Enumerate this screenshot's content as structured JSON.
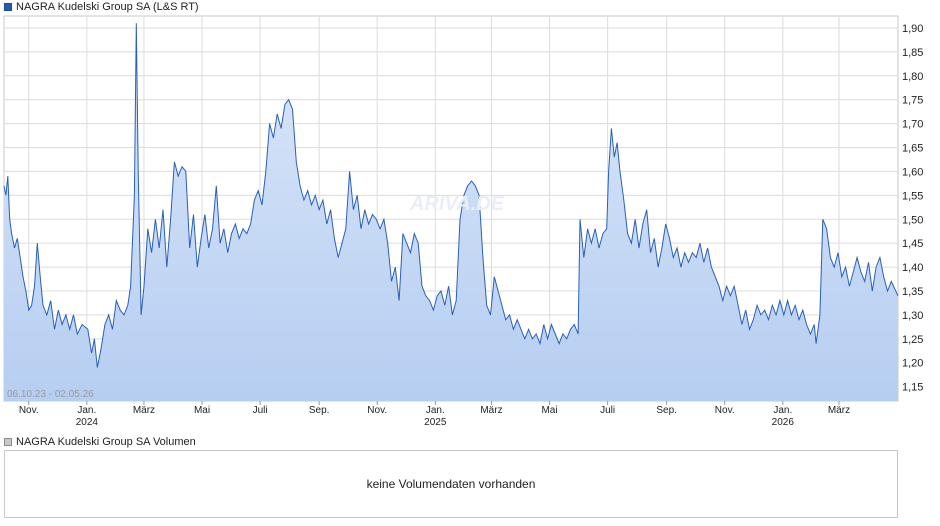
{
  "legend": {
    "price_label": "NAGRA Kudelski Group SA (L&S RT)",
    "volume_label": "NAGRA Kudelski Group SA Volumen"
  },
  "volume": {
    "message": "keine Volumendaten vorhanden"
  },
  "colors": {
    "line": "#2a5fb8",
    "fill_top": "#dbe7f8",
    "fill_bottom": "#b6cef2",
    "grid": "#dcdcdc"
  },
  "chart_data": {
    "type": "area",
    "date_range_label": "06.10.23 - 02.05.26",
    "y_ticks": [
      1.15,
      1.2,
      1.25,
      1.3,
      1.35,
      1.4,
      1.45,
      1.5,
      1.55,
      1.6,
      1.65,
      1.7,
      1.75,
      1.8,
      1.85,
      1.9
    ],
    "y_tick_labels": [
      "1,15",
      "1,20",
      "1,25",
      "1,30",
      "1,35",
      "1,40",
      "1,45",
      "1,50",
      "1,55",
      "1,60",
      "1,65",
      "1,70",
      "1,75",
      "1,80",
      "1,85",
      "1,90"
    ],
    "ylim": [
      1.12,
      1.925
    ],
    "xlim": [
      "2023-10-06",
      "2026-05-02"
    ],
    "x_ticks": [
      {
        "date": "2023-11-01",
        "label": "Nov."
      },
      {
        "date": "2024-01-01",
        "label": "Jan.",
        "year": "2024"
      },
      {
        "date": "2024-03-01",
        "label": "März"
      },
      {
        "date": "2024-05-01",
        "label": "Mai"
      },
      {
        "date": "2024-07-01",
        "label": "Juli"
      },
      {
        "date": "2024-09-01",
        "label": "Sep."
      },
      {
        "date": "2024-11-01",
        "label": "Nov."
      },
      {
        "date": "2025-01-01",
        "label": "Jan.",
        "year": "2025"
      },
      {
        "date": "2025-03-01",
        "label": "März"
      },
      {
        "date": "2025-05-01",
        "label": "Mai"
      },
      {
        "date": "2025-07-01",
        "label": "Juli"
      },
      {
        "date": "2025-09-01",
        "label": "Sep."
      },
      {
        "date": "2025-11-01",
        "label": "Nov."
      },
      {
        "date": "2026-01-01",
        "label": "Jan.",
        "year": "2026"
      },
      {
        "date": "2026-03-01",
        "label": "März"
      }
    ],
    "series": [
      {
        "points": [
          [
            "2023-10-06",
            1.57
          ],
          [
            "2023-10-08",
            1.55
          ],
          [
            "2023-10-10",
            1.59
          ],
          [
            "2023-10-12",
            1.5
          ],
          [
            "2023-10-14",
            1.47
          ],
          [
            "2023-10-17",
            1.44
          ],
          [
            "2023-10-20",
            1.46
          ],
          [
            "2023-10-23",
            1.42
          ],
          [
            "2023-10-26",
            1.38
          ],
          [
            "2023-10-29",
            1.35
          ],
          [
            "2023-11-01",
            1.31
          ],
          [
            "2023-11-04",
            1.32
          ],
          [
            "2023-11-07",
            1.36
          ],
          [
            "2023-11-10",
            1.45
          ],
          [
            "2023-11-13",
            1.38
          ],
          [
            "2023-11-16",
            1.32
          ],
          [
            "2023-11-20",
            1.3
          ],
          [
            "2023-11-24",
            1.33
          ],
          [
            "2023-11-28",
            1.27
          ],
          [
            "2023-12-02",
            1.31
          ],
          [
            "2023-12-06",
            1.28
          ],
          [
            "2023-12-10",
            1.3
          ],
          [
            "2023-12-14",
            1.27
          ],
          [
            "2023-12-18",
            1.3
          ],
          [
            "2023-12-22",
            1.26
          ],
          [
            "2023-12-27",
            1.28
          ],
          [
            "2024-01-02",
            1.27
          ],
          [
            "2024-01-06",
            1.22
          ],
          [
            "2024-01-09",
            1.25
          ],
          [
            "2024-01-12",
            1.19
          ],
          [
            "2024-01-16",
            1.23
          ],
          [
            "2024-01-20",
            1.28
          ],
          [
            "2024-01-24",
            1.3
          ],
          [
            "2024-01-28",
            1.27
          ],
          [
            "2024-02-01",
            1.33
          ],
          [
            "2024-02-05",
            1.31
          ],
          [
            "2024-02-09",
            1.3
          ],
          [
            "2024-02-13",
            1.32
          ],
          [
            "2024-02-16",
            1.36
          ],
          [
            "2024-02-20",
            1.55
          ],
          [
            "2024-02-22",
            1.91
          ],
          [
            "2024-02-24",
            1.6
          ],
          [
            "2024-02-27",
            1.3
          ],
          [
            "2024-03-01",
            1.36
          ],
          [
            "2024-03-05",
            1.48
          ],
          [
            "2024-03-09",
            1.43
          ],
          [
            "2024-03-13",
            1.5
          ],
          [
            "2024-03-17",
            1.44
          ],
          [
            "2024-03-21",
            1.52
          ],
          [
            "2024-03-25",
            1.4
          ],
          [
            "2024-03-29",
            1.5
          ],
          [
            "2024-04-02",
            1.62
          ],
          [
            "2024-04-06",
            1.59
          ],
          [
            "2024-04-10",
            1.61
          ],
          [
            "2024-04-14",
            1.6
          ],
          [
            "2024-04-18",
            1.44
          ],
          [
            "2024-04-22",
            1.51
          ],
          [
            "2024-04-26",
            1.4
          ],
          [
            "2024-04-30",
            1.46
          ],
          [
            "2024-05-04",
            1.51
          ],
          [
            "2024-05-08",
            1.44
          ],
          [
            "2024-05-12",
            1.48
          ],
          [
            "2024-05-16",
            1.57
          ],
          [
            "2024-05-20",
            1.45
          ],
          [
            "2024-05-24",
            1.48
          ],
          [
            "2024-05-28",
            1.43
          ],
          [
            "2024-06-01",
            1.47
          ],
          [
            "2024-06-05",
            1.49
          ],
          [
            "2024-06-09",
            1.46
          ],
          [
            "2024-06-13",
            1.48
          ],
          [
            "2024-06-17",
            1.47
          ],
          [
            "2024-06-21",
            1.49
          ],
          [
            "2024-06-25",
            1.54
          ],
          [
            "2024-06-29",
            1.56
          ],
          [
            "2024-07-03",
            1.53
          ],
          [
            "2024-07-07",
            1.6
          ],
          [
            "2024-07-11",
            1.7
          ],
          [
            "2024-07-15",
            1.67
          ],
          [
            "2024-07-19",
            1.72
          ],
          [
            "2024-07-23",
            1.69
          ],
          [
            "2024-07-27",
            1.74
          ],
          [
            "2024-07-31",
            1.75
          ],
          [
            "2024-08-04",
            1.73
          ],
          [
            "2024-08-08",
            1.62
          ],
          [
            "2024-08-12",
            1.57
          ],
          [
            "2024-08-16",
            1.54
          ],
          [
            "2024-08-20",
            1.56
          ],
          [
            "2024-08-24",
            1.53
          ],
          [
            "2024-08-28",
            1.55
          ],
          [
            "2024-09-01",
            1.52
          ],
          [
            "2024-09-05",
            1.54
          ],
          [
            "2024-09-09",
            1.49
          ],
          [
            "2024-09-13",
            1.52
          ],
          [
            "2024-09-17",
            1.46
          ],
          [
            "2024-09-21",
            1.42
          ],
          [
            "2024-09-25",
            1.45
          ],
          [
            "2024-09-29",
            1.48
          ],
          [
            "2024-10-03",
            1.6
          ],
          [
            "2024-10-07",
            1.52
          ],
          [
            "2024-10-11",
            1.55
          ],
          [
            "2024-10-15",
            1.48
          ],
          [
            "2024-10-19",
            1.52
          ],
          [
            "2024-10-23",
            1.49
          ],
          [
            "2024-10-27",
            1.51
          ],
          [
            "2024-10-31",
            1.5
          ],
          [
            "2024-11-04",
            1.48
          ],
          [
            "2024-11-08",
            1.5
          ],
          [
            "2024-11-12",
            1.45
          ],
          [
            "2024-11-16",
            1.37
          ],
          [
            "2024-11-20",
            1.4
          ],
          [
            "2024-11-24",
            1.33
          ],
          [
            "2024-11-28",
            1.47
          ],
          [
            "2024-12-02",
            1.45
          ],
          [
            "2024-12-06",
            1.43
          ],
          [
            "2024-12-10",
            1.47
          ],
          [
            "2024-12-14",
            1.45
          ],
          [
            "2024-12-18",
            1.36
          ],
          [
            "2024-12-22",
            1.34
          ],
          [
            "2024-12-26",
            1.33
          ],
          [
            "2024-12-30",
            1.31
          ],
          [
            "2025-01-03",
            1.34
          ],
          [
            "2025-01-07",
            1.35
          ],
          [
            "2025-01-11",
            1.32
          ],
          [
            "2025-01-15",
            1.36
          ],
          [
            "2025-01-19",
            1.3
          ],
          [
            "2025-01-23",
            1.33
          ],
          [
            "2025-01-27",
            1.5
          ],
          [
            "2025-01-31",
            1.55
          ],
          [
            "2025-02-04",
            1.57
          ],
          [
            "2025-02-08",
            1.58
          ],
          [
            "2025-02-12",
            1.57
          ],
          [
            "2025-02-16",
            1.55
          ],
          [
            "2025-02-20",
            1.42
          ],
          [
            "2025-02-24",
            1.32
          ],
          [
            "2025-02-28",
            1.3
          ],
          [
            "2025-03-04",
            1.38
          ],
          [
            "2025-03-08",
            1.35
          ],
          [
            "2025-03-12",
            1.32
          ],
          [
            "2025-03-16",
            1.29
          ],
          [
            "2025-03-20",
            1.3
          ],
          [
            "2025-03-24",
            1.27
          ],
          [
            "2025-03-28",
            1.29
          ],
          [
            "2025-04-01",
            1.27
          ],
          [
            "2025-04-05",
            1.25
          ],
          [
            "2025-04-09",
            1.27
          ],
          [
            "2025-04-13",
            1.25
          ],
          [
            "2025-04-17",
            1.26
          ],
          [
            "2025-04-21",
            1.24
          ],
          [
            "2025-04-25",
            1.28
          ],
          [
            "2025-04-29",
            1.25
          ],
          [
            "2025-05-03",
            1.28
          ],
          [
            "2025-05-07",
            1.26
          ],
          [
            "2025-05-11",
            1.24
          ],
          [
            "2025-05-15",
            1.26
          ],
          [
            "2025-05-19",
            1.25
          ],
          [
            "2025-05-23",
            1.27
          ],
          [
            "2025-05-27",
            1.28
          ],
          [
            "2025-05-31",
            1.26
          ],
          [
            "2025-06-02",
            1.5
          ],
          [
            "2025-06-06",
            1.42
          ],
          [
            "2025-06-10",
            1.48
          ],
          [
            "2025-06-14",
            1.45
          ],
          [
            "2025-06-18",
            1.48
          ],
          [
            "2025-06-22",
            1.44
          ],
          [
            "2025-06-26",
            1.47
          ],
          [
            "2025-06-30",
            1.48
          ],
          [
            "2025-07-02",
            1.6
          ],
          [
            "2025-07-05",
            1.69
          ],
          [
            "2025-07-08",
            1.63
          ],
          [
            "2025-07-11",
            1.66
          ],
          [
            "2025-07-14",
            1.6
          ],
          [
            "2025-07-18",
            1.54
          ],
          [
            "2025-07-22",
            1.47
          ],
          [
            "2025-07-26",
            1.45
          ],
          [
            "2025-07-30",
            1.5
          ],
          [
            "2025-08-03",
            1.44
          ],
          [
            "2025-08-07",
            1.49
          ],
          [
            "2025-08-11",
            1.52
          ],
          [
            "2025-08-15",
            1.43
          ],
          [
            "2025-08-19",
            1.46
          ],
          [
            "2025-08-23",
            1.4
          ],
          [
            "2025-08-27",
            1.44
          ],
          [
            "2025-08-31",
            1.49
          ],
          [
            "2025-09-04",
            1.46
          ],
          [
            "2025-09-08",
            1.42
          ],
          [
            "2025-09-12",
            1.44
          ],
          [
            "2025-09-16",
            1.4
          ],
          [
            "2025-09-20",
            1.43
          ],
          [
            "2025-09-24",
            1.41
          ],
          [
            "2025-09-28",
            1.43
          ],
          [
            "2025-10-02",
            1.42
          ],
          [
            "2025-10-06",
            1.45
          ],
          [
            "2025-10-10",
            1.41
          ],
          [
            "2025-10-14",
            1.44
          ],
          [
            "2025-10-18",
            1.4
          ],
          [
            "2025-10-22",
            1.38
          ],
          [
            "2025-10-26",
            1.36
          ],
          [
            "2025-10-30",
            1.33
          ],
          [
            "2025-11-03",
            1.36
          ],
          [
            "2025-11-07",
            1.34
          ],
          [
            "2025-11-11",
            1.36
          ],
          [
            "2025-11-15",
            1.32
          ],
          [
            "2025-11-19",
            1.28
          ],
          [
            "2025-11-23",
            1.31
          ],
          [
            "2025-11-27",
            1.27
          ],
          [
            "2025-12-01",
            1.29
          ],
          [
            "2025-12-05",
            1.32
          ],
          [
            "2025-12-09",
            1.3
          ],
          [
            "2025-12-13",
            1.31
          ],
          [
            "2025-12-17",
            1.29
          ],
          [
            "2025-12-21",
            1.32
          ],
          [
            "2025-12-25",
            1.3
          ],
          [
            "2025-12-29",
            1.33
          ],
          [
            "2026-01-02",
            1.3
          ],
          [
            "2026-01-06",
            1.33
          ],
          [
            "2026-01-10",
            1.3
          ],
          [
            "2026-01-14",
            1.32
          ],
          [
            "2026-01-18",
            1.29
          ],
          [
            "2026-01-22",
            1.31
          ],
          [
            "2026-01-26",
            1.28
          ],
          [
            "2026-01-30",
            1.26
          ],
          [
            "2026-02-03",
            1.28
          ],
          [
            "2026-02-05",
            1.24
          ],
          [
            "2026-02-09",
            1.3
          ],
          [
            "2026-02-12",
            1.5
          ],
          [
            "2026-02-16",
            1.48
          ],
          [
            "2026-02-20",
            1.42
          ],
          [
            "2026-02-24",
            1.4
          ],
          [
            "2026-02-28",
            1.43
          ],
          [
            "2026-03-04",
            1.38
          ],
          [
            "2026-03-08",
            1.4
          ],
          [
            "2026-03-12",
            1.36
          ],
          [
            "2026-03-16",
            1.39
          ],
          [
            "2026-03-20",
            1.42
          ],
          [
            "2026-03-24",
            1.39
          ],
          [
            "2026-03-28",
            1.37
          ],
          [
            "2026-04-01",
            1.41
          ],
          [
            "2026-04-05",
            1.35
          ],
          [
            "2026-04-09",
            1.4
          ],
          [
            "2026-04-13",
            1.42
          ],
          [
            "2026-04-17",
            1.38
          ],
          [
            "2026-04-21",
            1.35
          ],
          [
            "2026-04-25",
            1.37
          ],
          [
            "2026-05-02",
            1.34
          ]
        ]
      }
    ]
  }
}
